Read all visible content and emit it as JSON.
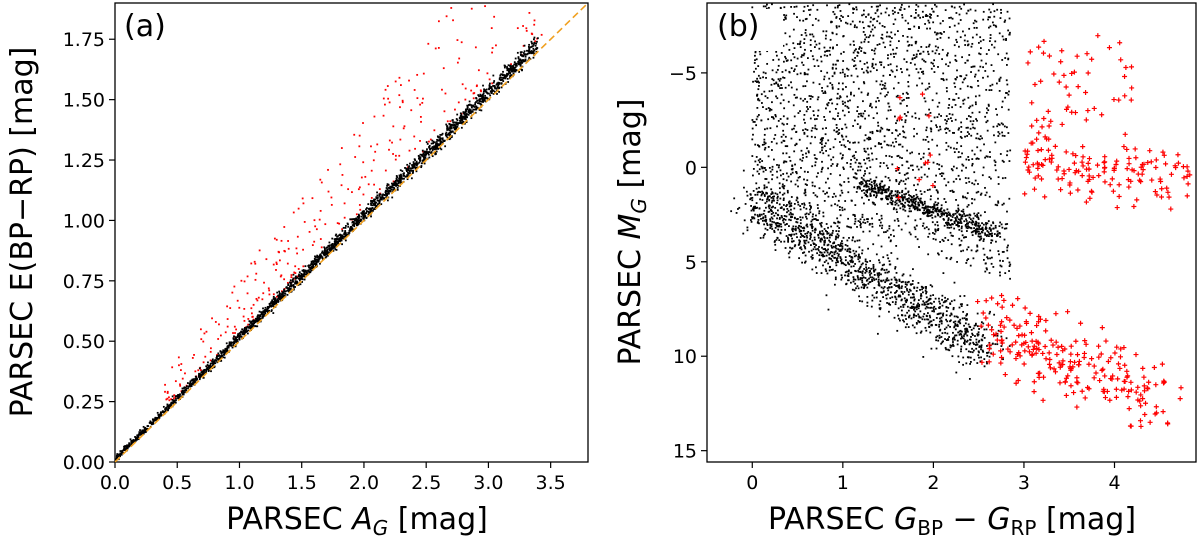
{
  "chart_data": [
    {
      "type": "scatter",
      "panel_label": "(a)",
      "xlabel_prefix": "PARSEC ",
      "xlabel_var": "A",
      "xlabel_sub": "G",
      "xlabel_unit": " [mag]",
      "ylabel": "PARSEC E(BP−RP) [mag]",
      "xlim": [
        0.0,
        3.8
      ],
      "ylim": [
        0.0,
        1.9
      ],
      "xticks": [
        0.0,
        0.5,
        1.0,
        1.5,
        2.0,
        2.5,
        3.0,
        3.5
      ],
      "xtick_labels": [
        "0.0",
        "0.5",
        "1.0",
        "1.5",
        "2.0",
        "2.5",
        "3.0",
        "3.5"
      ],
      "yticks": [
        0.0,
        0.25,
        0.5,
        0.75,
        1.0,
        1.25,
        1.5,
        1.75
      ],
      "ytick_labels": [
        "0.00",
        "0.25",
        "0.50",
        "0.75",
        "1.00",
        "1.25",
        "1.50",
        "1.75"
      ],
      "reference_line": {
        "slope": 0.5,
        "intercept": 0.0,
        "style": "dashed",
        "color": "#f0a020"
      },
      "series": [
        {
          "name": "main",
          "color": "#000000",
          "relation": "y ≈ 0.505·x, tight scatter",
          "x_range": [
            0.0,
            3.4
          ],
          "approx_points": 2200
        },
        {
          "name": "outliers",
          "color": "#ff0000",
          "relation": "y above main relation by up to ~0.45 mag",
          "x_range": [
            0.4,
            3.45
          ],
          "approx_points": 330
        }
      ]
    },
    {
      "type": "scatter",
      "panel_label": "(b)",
      "xlabel_prefix": "PARSEC ",
      "xlabel_g1": "G",
      "xlabel_sub1": "BP",
      "xlabel_minus": " − ",
      "xlabel_g2": "G",
      "xlabel_sub2": "RP",
      "xlabel_unit": " [mag]",
      "ylabel_prefix": "PARSEC ",
      "ylabel_var": "M",
      "ylabel_sub": "G",
      "ylabel_unit": " [mag]",
      "xlim": [
        -0.5,
        4.9
      ],
      "ylim": [
        15.6,
        -8.7
      ],
      "xticks": [
        0,
        1,
        2,
        3,
        4
      ],
      "xtick_labels": [
        "0",
        "1",
        "2",
        "3",
        "4"
      ],
      "yticks": [
        -5,
        0,
        5,
        10,
        15
      ],
      "ytick_labels": [
        "−5",
        "0",
        "5",
        "10",
        "15"
      ],
      "series": [
        {
          "name": "black",
          "color": "#000000",
          "features": [
            "main sequence diagonal from (0.0,1.8) to (2.6,9.6)",
            "giant band from (1.2,0.8) to (2.7,3.6)",
            "broad cloud (0.0–2.9, −8.7–6)"
          ],
          "approx_points": 3800
        },
        {
          "name": "red",
          "color": "#ff0000",
          "marker": "plus",
          "features": [
            "cool dwarfs (2.6–4.5, 8–13.5)",
            "red clump / giants (3.0–4.9, −2–2)",
            "cool supergiants (3.0–4.2, −7–−2)",
            "few along 1.6–2.0, −4–2"
          ],
          "approx_points": 420
        }
      ]
    }
  ]
}
